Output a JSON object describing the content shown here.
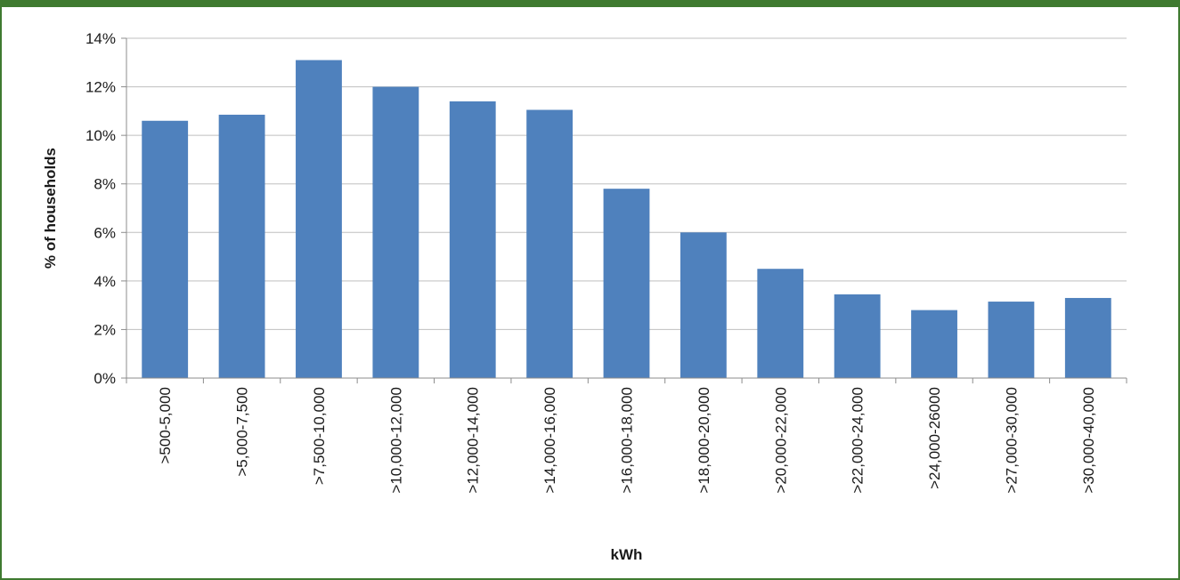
{
  "colors": {
    "frame": "#3f7a30",
    "bar": "#4f81bd",
    "grid": "#bfbfbf",
    "axis": "#8c8c8c"
  },
  "chart_data": {
    "type": "bar",
    "title": "",
    "xlabel": "kWh",
    "ylabel": "% of households",
    "categories": [
      ">500-5,000",
      ">5,000-7,500",
      ">7,500-10,000",
      ">10,000-12,000",
      ">12,000-14,000",
      ">14,000-16,000",
      ">16,000-18,000",
      ">18,000-20,000",
      ">20,000-22,000",
      ">22,000-24,000",
      ">24,000-26000",
      ">27,000-30,000",
      ">30,000-40,000"
    ],
    "values": [
      10.6,
      10.85,
      13.1,
      12.0,
      11.4,
      11.05,
      7.8,
      6.0,
      4.5,
      3.45,
      2.8,
      3.15,
      3.3
    ],
    "ylim": [
      0,
      14
    ],
    "yticks": [
      0,
      2,
      4,
      6,
      8,
      10,
      12,
      14
    ],
    "ytick_labels": [
      "0%",
      "2%",
      "4%",
      "6%",
      "8%",
      "10%",
      "12%",
      "14%"
    ],
    "grid": true,
    "legend": "none"
  }
}
